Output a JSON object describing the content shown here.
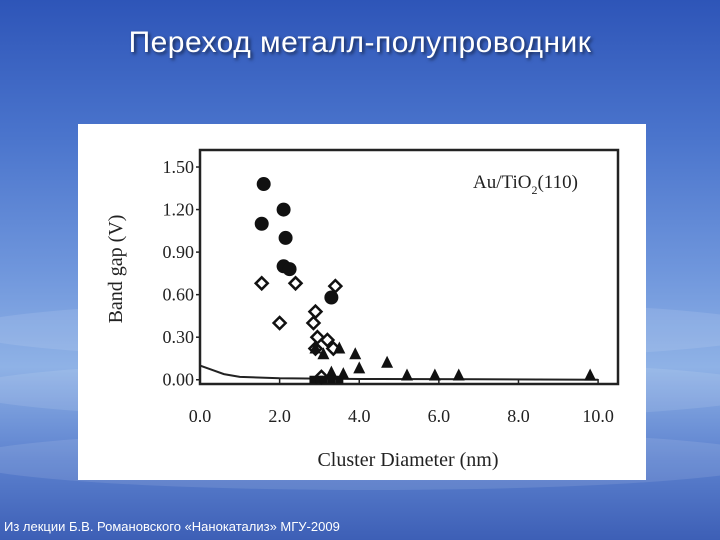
{
  "slide": {
    "title": "Переход металл-полупроводник",
    "footer": "Из лекции Б.В. Романовского «Нанокатализ» МГУ-2009"
  },
  "chart_data": {
    "type": "scatter",
    "title": "",
    "annotation": "Au/TiO",
    "annotation_sub": "2",
    "annotation_tail": "(110)",
    "xlabel": "Cluster Diameter (nm)",
    "ylabel": "Band gap (V)",
    "xlim": [
      0,
      10.5
    ],
    "ylim": [
      -0.03,
      1.62
    ],
    "x_ticks": [
      "0.0",
      "2.0",
      "4.0",
      "6.0",
      "8.0",
      "10.0"
    ],
    "y_ticks": [
      "0.00",
      "0.30",
      "0.60",
      "0.90",
      "1.20",
      "1.50"
    ],
    "x_tick_values": [
      0,
      2,
      4,
      6,
      8,
      10
    ],
    "y_tick_values": [
      0,
      0.3,
      0.6,
      0.9,
      1.2,
      1.5
    ],
    "colors": {
      "marker": "#111111",
      "axis": "#222222"
    },
    "series": [
      {
        "marker": "filled-circle",
        "x": [
          1.6,
          1.55,
          2.1,
          2.15,
          2.1,
          2.25,
          3.3
        ],
        "y": [
          1.38,
          1.1,
          1.2,
          1.0,
          0.8,
          0.78,
          0.58
        ]
      },
      {
        "marker": "open-diamond",
        "x": [
          1.55,
          2.0,
          2.4,
          2.9,
          2.85,
          2.95,
          2.9,
          3.2,
          3.4,
          3.35,
          3.05
        ],
        "y": [
          0.68,
          0.4,
          0.68,
          0.48,
          0.4,
          0.3,
          0.22,
          0.28,
          0.66,
          0.22,
          0.02
        ]
      },
      {
        "marker": "filled-triangle",
        "x": [
          2.9,
          3.1,
          3.3,
          3.5,
          3.6,
          3.9,
          4.0,
          4.7,
          5.2,
          5.9,
          6.5,
          9.8
        ],
        "y": [
          0.22,
          0.18,
          0.05,
          0.22,
          0.04,
          0.18,
          0.08,
          0.12,
          0.03,
          0.03,
          0.03,
          0.03
        ]
      },
      {
        "marker": "filled-square",
        "x": [
          2.85,
          3.0,
          3.1,
          3.3,
          3.5
        ],
        "y": [
          0.0,
          0.0,
          0.0,
          0.0,
          0.0
        ]
      }
    ],
    "curve": {
      "x": [
        0,
        0.3,
        0.6,
        1.0,
        2.0,
        4.0,
        7.0,
        10.0
      ],
      "y": [
        0.1,
        0.07,
        0.04,
        0.02,
        0.01,
        0.005,
        0.003,
        0.0
      ]
    }
  }
}
